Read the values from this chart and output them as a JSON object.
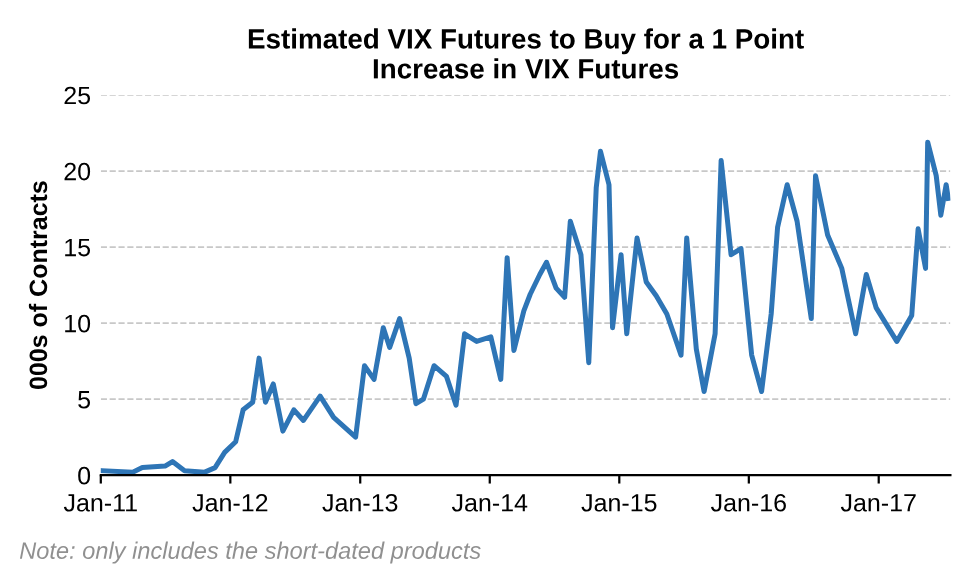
{
  "chart_data": {
    "type": "line",
    "title": "Estimated VIX Futures to Buy for a 1 Point\nIncrease in VIX Futures",
    "ylabel": "000s of Contracts",
    "annotations": [
      "Note: only includes the short-dated products"
    ],
    "x": [
      "2011-01-04",
      "2011-04-01",
      "2011-04-28",
      "2011-07-01",
      "2011-07-22",
      "2011-08-25",
      "2011-10-21",
      "2011-11-19",
      "2011-12-16",
      "2012-01-16",
      "2012-02-06",
      "2012-03-04",
      "2012-03-22",
      "2012-04-09",
      "2012-05-01",
      "2012-05-28",
      "2012-06-28",
      "2012-07-25",
      "2012-09-10",
      "2012-10-18",
      "2012-12-19",
      "2013-01-13",
      "2013-02-09",
      "2013-03-07",
      "2013-03-25",
      "2013-04-22",
      "2013-05-19",
      "2013-06-07",
      "2013-06-28",
      "2013-07-28",
      "2013-09-01",
      "2013-09-28",
      "2013-10-22",
      "2013-11-25",
      "2014-01-04",
      "2014-02-01",
      "2014-02-19",
      "2014-03-10",
      "2014-04-07",
      "2014-04-25",
      "2014-05-22",
      "2014-06-10",
      "2014-07-07",
      "2014-07-31",
      "2014-08-16",
      "2014-09-15",
      "2014-10-07",
      "2014-10-28",
      "2014-11-09",
      "2014-12-03",
      "2014-12-13",
      "2015-01-06",
      "2015-01-22",
      "2015-02-20",
      "2015-03-18",
      "2015-04-15",
      "2015-05-15",
      "2015-06-24",
      "2015-07-10",
      "2015-08-06",
      "2015-08-28",
      "2015-09-28",
      "2015-10-15",
      "2015-11-12",
      "2015-12-10",
      "2016-01-09",
      "2016-02-06",
      "2016-03-04",
      "2016-03-22",
      "2016-04-18",
      "2016-05-16",
      "2016-06-25",
      "2016-07-07",
      "2016-08-10",
      "2016-09-19",
      "2016-10-28",
      "2016-11-27",
      "2016-12-25",
      "2017-02-21",
      "2017-04-04",
      "2017-04-22",
      "2017-05-13",
      "2017-05-19",
      "2017-06-12",
      "2017-06-25",
      "2017-07-10",
      "2017-07-16"
    ],
    "series": [
      {
        "color": "#2e75b6",
        "values": [
          0.3,
          0.2,
          0.5,
          0.6,
          0.9,
          0.3,
          0.2,
          0.5,
          1.5,
          2.2,
          4.3,
          4.8,
          7.7,
          4.8,
          6.0,
          2.9,
          4.3,
          3.6,
          5.2,
          3.8,
          2.5,
          7.2,
          6.3,
          9.7,
          8.4,
          10.3,
          7.7,
          4.7,
          5.0,
          7.2,
          6.5,
          4.6,
          9.3,
          8.8,
          9.1,
          6.3,
          14.3,
          8.2,
          10.8,
          11.9,
          13.2,
          14.0,
          12.3,
          11.7,
          16.7,
          14.5,
          7.4,
          18.9,
          21.3,
          19.1,
          9.7,
          14.5,
          9.3,
          15.6,
          12.7,
          11.8,
          10.6,
          7.9,
          15.6,
          8.3,
          5.5,
          9.3,
          20.7,
          14.5,
          14.9,
          7.9,
          5.5,
          10.6,
          16.3,
          19.1,
          16.7,
          10.3,
          19.7,
          15.8,
          13.6,
          9.3,
          13.2,
          11.0,
          8.8,
          10.5,
          16.2,
          13.6,
          21.9,
          19.7,
          17.1,
          19.1,
          18.2
        ]
      }
    ],
    "xlim": [
      "2011-01-01",
      "2017-07-22"
    ],
    "xticks": [
      {
        "value": "2011-01-01",
        "label": "Jan-11"
      },
      {
        "value": "2012-01-01",
        "label": "Jan-12"
      },
      {
        "value": "2013-01-01",
        "label": "Jan-13"
      },
      {
        "value": "2014-01-01",
        "label": "Jan-14"
      },
      {
        "value": "2015-01-01",
        "label": "Jan-15"
      },
      {
        "value": "2016-01-01",
        "label": "Jan-16"
      },
      {
        "value": "2017-01-01",
        "label": "Jan-17"
      }
    ],
    "ylim": [
      0,
      25
    ],
    "yticks": [
      0,
      5,
      10,
      15,
      20,
      25
    ],
    "grid": "y",
    "line_style": "solid"
  }
}
